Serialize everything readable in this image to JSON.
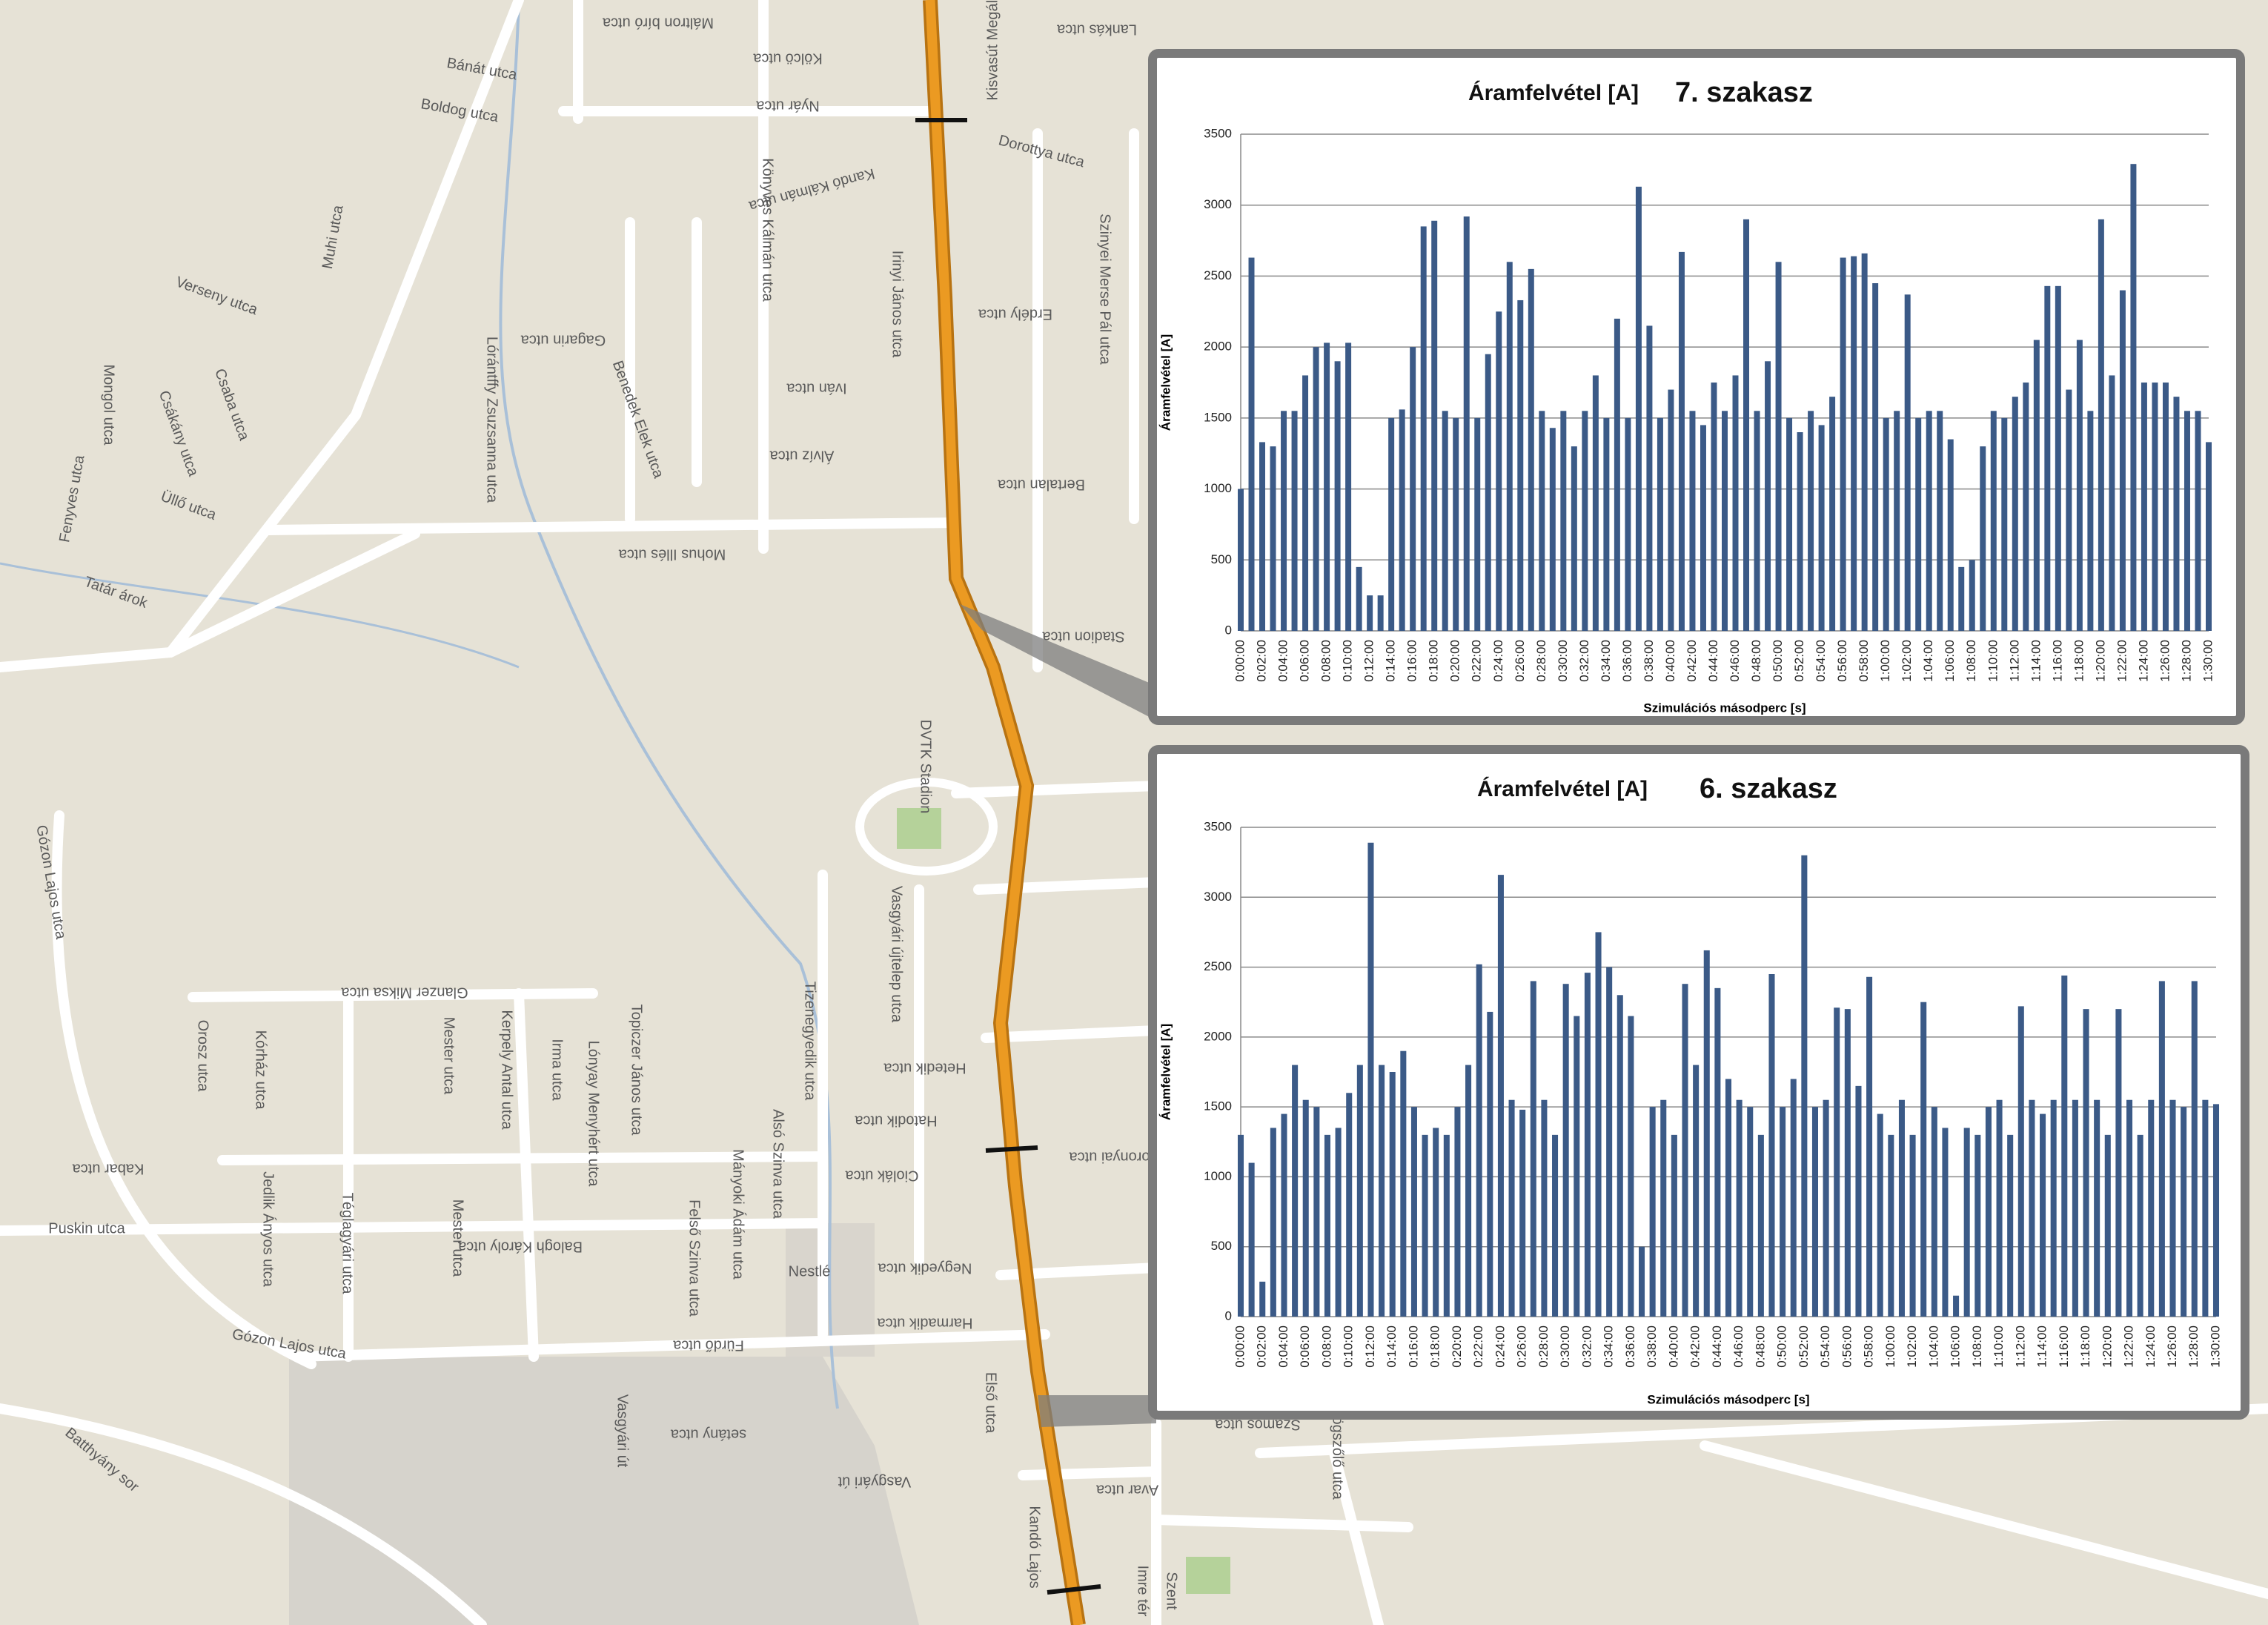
{
  "chart_data": [
    {
      "type": "bar",
      "title": "Áramfelvétel [A]",
      "subtitle": "7. szakasz",
      "y_label": "Áramfelvétel [A]",
      "x_label": "Szimulációs másodperc [s]",
      "color": "#3b5a87",
      "grid": true,
      "categories": [
        "0:00:00",
        null,
        "0:02:00",
        null,
        "0:04:00",
        null,
        "0:06:00",
        null,
        "0:08:00",
        null,
        "0:10:00",
        null,
        "0:12:00",
        null,
        "0:14:00",
        null,
        "0:16:00",
        null,
        "0:18:00",
        null,
        "0:20:00",
        null,
        "0:22:00",
        null,
        "0:24:00",
        null,
        "0:26:00",
        null,
        "0:28:00",
        null,
        "0:30:00",
        null,
        "0:32:00",
        null,
        "0:34:00",
        null,
        "0:36:00",
        null,
        "0:38:00",
        null,
        "0:40:00",
        null,
        "0:42:00",
        null,
        "0:44:00",
        null,
        "0:46:00",
        null,
        "0:48:00",
        null,
        "0:50:00",
        null,
        "0:52:00",
        null,
        "0:54:00",
        null,
        "0:56:00",
        null,
        "0:58:00",
        null,
        "1:00:00",
        null,
        "1:02:00",
        null,
        "1:04:00",
        null,
        "1:06:00",
        null,
        "1:08:00",
        null,
        "1:10:00",
        null,
        "1:12:00",
        null,
        "1:14:00",
        null,
        "1:16:00",
        null,
        "1:18:00",
        null,
        "1:20:00",
        null,
        "1:22:00",
        null,
        "1:24:00",
        null,
        "1:26:00",
        null,
        "1:28:00",
        null,
        "1:30:00"
      ],
      "values": [
        1000,
        2630,
        1330,
        1300,
        1550,
        1550,
        1800,
        2000,
        2030,
        1900,
        2030,
        450,
        250,
        250,
        1500,
        1560,
        2000,
        2850,
        2890,
        1550,
        1500,
        2920,
        1500,
        1950,
        2250,
        2600,
        2330,
        2550,
        1550,
        1430,
        1550,
        1300,
        1550,
        1800,
        1500,
        2200,
        1500,
        3130,
        2150,
        1500,
        1700,
        2670,
        1550,
        1450,
        1750,
        1550,
        1800,
        2900,
        1550,
        1900,
        2600,
        1500,
        1400,
        1550,
        1450,
        1650,
        2630,
        2640,
        2660,
        2450,
        1500,
        1550,
        2370,
        1500,
        1550,
        1550,
        1350,
        450,
        500,
        1300,
        1550,
        1500,
        1650,
        1750,
        2050,
        2430,
        2430,
        1700,
        2050,
        1550,
        2900,
        1800,
        2400,
        3290,
        1750,
        1750,
        1750,
        1650,
        1550,
        1550,
        1330
      ],
      "ylim": [
        0,
        3500
      ],
      "yticks": [
        0,
        500,
        1000,
        1500,
        2000,
        2500,
        3000,
        3500
      ]
    },
    {
      "type": "bar",
      "title": "Áramfelvétel [A]",
      "subtitle": "6. szakasz",
      "y_label": "Áramfelvétel [A]",
      "x_label": "Szimulációs másodperc [s]",
      "color": "#3b5a87",
      "grid": true,
      "categories": [
        "0:00:00",
        null,
        "0:02:00",
        null,
        "0:04:00",
        null,
        "0:06:00",
        null,
        "0:08:00",
        null,
        "0:10:00",
        null,
        "0:12:00",
        null,
        "0:14:00",
        null,
        "0:16:00",
        null,
        "0:18:00",
        null,
        "0:20:00",
        null,
        "0:22:00",
        null,
        "0:24:00",
        null,
        "0:26:00",
        null,
        "0:28:00",
        null,
        "0:30:00",
        null,
        "0:32:00",
        null,
        "0:34:00",
        null,
        "0:36:00",
        null,
        "0:38:00",
        null,
        "0:40:00",
        null,
        "0:42:00",
        null,
        "0:44:00",
        null,
        "0:46:00",
        null,
        "0:48:00",
        null,
        "0:50:00",
        null,
        "0:52:00",
        null,
        "0:54:00",
        null,
        "0:56:00",
        null,
        "0:58:00",
        null,
        "1:00:00",
        null,
        "1:02:00",
        null,
        "1:04:00",
        null,
        "1:06:00",
        null,
        "1:08:00",
        null,
        "1:10:00",
        null,
        "1:12:00",
        null,
        "1:14:00",
        null,
        "1:16:00",
        null,
        "1:18:00",
        null,
        "1:20:00",
        null,
        "1:22:00",
        null,
        "1:24:00",
        null,
        "1:26:00",
        null,
        "1:28:00",
        null,
        "1:30:00"
      ],
      "values": [
        1300,
        1100,
        250,
        1350,
        1450,
        1800,
        1550,
        1500,
        1300,
        1350,
        1600,
        1800,
        3390,
        1800,
        1750,
        1900,
        1500,
        1300,
        1350,
        1300,
        1500,
        1800,
        2520,
        2180,
        3160,
        1550,
        1480,
        2400,
        1550,
        1300,
        2380,
        2150,
        2460,
        2750,
        2500,
        2300,
        2150,
        500,
        1500,
        1550,
        1300,
        2380,
        1800,
        2620,
        2350,
        1700,
        1550,
        1500,
        1300,
        2450,
        1500,
        1700,
        3300,
        1500,
        1550,
        2210,
        2200,
        1650,
        2430,
        1450,
        1300,
        1550,
        1300,
        2250,
        1500,
        1350,
        150,
        1350,
        1300,
        1500,
        1550,
        1300,
        2220,
        1550,
        1450,
        1550,
        2440,
        1550,
        2200,
        1550,
        1300,
        2200,
        1550,
        1300,
        1550,
        2400,
        1550,
        1500,
        2400,
        1550,
        1520
      ],
      "ylim": [
        0,
        3500
      ],
      "yticks": [
        0,
        500,
        1000,
        1500,
        2000,
        2500,
        3000,
        3500
      ]
    }
  ],
  "map": {
    "streets": [
      "Máltron bíró utca",
      "Bánát utca",
      "Boldog utca",
      "Kölcö utca",
      "Nyár utca",
      "Lankás utca",
      "Dorottya utca",
      "Kandó Kálmán utca",
      "Könyves Kálmán utca",
      "Szinyei Merse Pál utca",
      "Irinyi János utca",
      "Erdély utca",
      "Verseny utca",
      "Muhi utca",
      "Gagarin utca",
      "Lórántffy Zsuzsanna utca",
      "Benedek Elek utca",
      "Iván utca",
      "Mongol utca",
      "Csákány utca",
      "Csaba utca",
      "Fenyves utca",
      "Üllő utca",
      "Álvíz utca",
      "Bertalan utca",
      "Mohus Illés utca",
      "Tatár árok",
      "Stadion utca",
      "Gózon Lajos utca",
      "DVTK Stadion",
      "Vasgyári újtelep utca",
      "Glanzer Miksa utca",
      "Hetedik utca",
      "Hatodik utca",
      "Tizenegyedik utca",
      "Orosz utca",
      "Kórház utca",
      "Mester utca",
      "Kerpely Antal utca",
      "Irma utca",
      "Lónyay Menyhért utca",
      "Topiczer János utca",
      "Kabar utca",
      "Jedlik Ányos utca",
      "Téglagyári utca",
      "Puskin utca",
      "Alsó Szinva utca",
      "Mányoki Ádám utca",
      "Felső Szinva utca",
      "Balogh Károly utca",
      "Ciolák utca",
      "Toronyai utca",
      "Negyedik utca",
      "Harmadik utca",
      "Fürdő utca",
      "Gózon Lajos utca",
      "Nestlé",
      "Vasgyári út",
      "setány utca",
      "Első utca",
      "Vasgyári út",
      "Batthyány sor",
      "Kandó Lajos",
      "Imre tér",
      "Szent",
      "Görögszőlő utca",
      "Avar utca",
      "Szamos utca",
      "Kisvasút Megálló",
      "Mester utca"
    ]
  }
}
